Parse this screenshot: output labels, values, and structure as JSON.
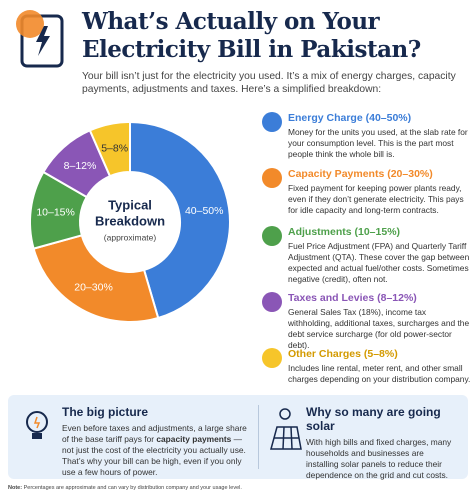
{
  "header": {
    "title_lines": [
      "What’s Actually on Your",
      "Electricity Bill in Pakistan?"
    ],
    "subtitle": "Your bill isn’t just for the electricity you used. It’s a mix of energy charges, capacity payments, adjustments and taxes. Here’s a simplified breakdown:"
  },
  "chart_data": {
    "type": "donut",
    "center_title_lines": [
      "Typical",
      "Breakdown"
    ],
    "center_subtitle": "(approximate)",
    "categories": [
      "Energy Charge",
      "Capacity Payments",
      "Adjustments",
      "Taxes and Levies",
      "Other Charges"
    ],
    "values": [
      45,
      25,
      12.5,
      10,
      6.5
    ],
    "value_labels": [
      "40–50%",
      "20–30%",
      "10–15%",
      "8–12%",
      "5–8%"
    ],
    "colors": [
      "#3b7dd8",
      "#f28a2a",
      "#4ea04b",
      "#8a56b6",
      "#f6c52a"
    ]
  },
  "legend": [
    {
      "title": "Energy Charge (40–50%)",
      "text": "Money for the units you used, at the slab rate for your consumption level. This is the part most people think the whole bill is."
    },
    {
      "title": "Capacity Payments (20–30%)",
      "text": "Fixed payment for keeping power plants ready, even if they don’t generate electricity. This pays for idle capacity and long-term contracts."
    },
    {
      "title": "Adjustments (10–15%)",
      "text": "Fuel Price Adjustment (FPA) and Quarterly Tariff Adjustment (QTA). These cover the gap between expected and actual fuel/other costs. Sometimes negative (credit), often not."
    },
    {
      "title": "Taxes and Levies (8–12%)",
      "text": "General Sales Tax (18%), income tax withholding, additional taxes, surcharges and the debt service surcharge (for old power-sector debt)."
    },
    {
      "title": "Other Charges (5–8%)",
      "text": "Includes line rental, meter rent, and other small charges depending on your distribution company."
    }
  ],
  "panels": [
    {
      "title": "The big picture",
      "text": [
        "Even before taxes and adjustments, a large share of the base tariff pays for ",
        "capacity payments",
        " — not just the cost of the electricity you actually use. That’s why your bill can be high, even if you only use a few hours of power."
      ]
    },
    {
      "title": "Why so many are going solar",
      "text": [
        "With high bills and fixed charges, many households and businesses are installing solar panels to reduce their dependence on the grid and cut costs."
      ]
    }
  ],
  "note": [
    "Note:",
    " Percentages are approximate and can vary by distribution company and your usage level."
  ]
}
